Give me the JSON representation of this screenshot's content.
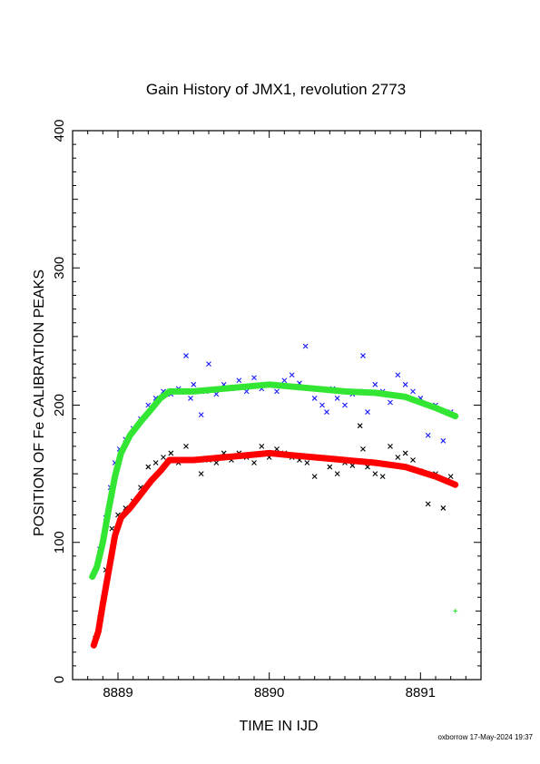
{
  "chart_data": {
    "type": "scatter",
    "title": "Gain History of JMX1, revolution 2773",
    "xlabel": "TIME IN IJD",
    "ylabel": "POSITION OF Fe CALIBRATION PEAKS",
    "xlim": [
      8888.7,
      8891.4
    ],
    "ylim": [
      0,
      400
    ],
    "xticks": [
      8889,
      8890,
      8891
    ],
    "xtick_labels": [
      "8889",
      "8890",
      "8891"
    ],
    "yticks": [
      0,
      100,
      200,
      300,
      400
    ],
    "ytick_labels": [
      "0",
      "100",
      "200",
      "300",
      "400"
    ],
    "grid": false,
    "legend": "none",
    "colors": {
      "upper_points": "#1a1aff",
      "upper_fit": "#33e633",
      "lower_points": "#000000",
      "lower_fit": "#ff0000"
    },
    "series": [
      {
        "marker": "x",
        "color": "#1a1aff",
        "x": [
          8888.88,
          8888.92,
          8888.95,
          8888.98,
          8889.01,
          8889.05,
          8889.1,
          8889.15,
          8889.2,
          8889.25,
          8889.3,
          8889.35,
          8889.4,
          8889.45,
          8889.48,
          8889.5,
          8889.55,
          8889.58,
          8889.6,
          8889.65,
          8889.7,
          8889.75,
          8889.8,
          8889.85,
          8889.9,
          8889.95,
          8890.0,
          8890.05,
          8890.1,
          8890.15,
          8890.2,
          8890.24,
          8890.3,
          8890.35,
          8890.38,
          8890.42,
          8890.45,
          8890.5,
          8890.55,
          8890.6,
          8890.62,
          8890.65,
          8890.7,
          8890.75,
          8890.8,
          8890.85,
          8890.9,
          8890.95,
          8891.0,
          8891.05,
          8891.1,
          8891.15,
          8891.2
        ],
        "y": [
          95,
          118,
          140,
          158,
          168,
          175,
          183,
          190,
          200,
          205,
          210,
          208,
          212,
          236,
          205,
          215,
          193,
          210,
          230,
          208,
          215,
          212,
          218,
          210,
          220,
          212,
          215,
          210,
          218,
          222,
          216,
          243,
          205,
          200,
          195,
          212,
          205,
          200,
          208,
          210,
          236,
          195,
          215,
          210,
          202,
          222,
          215,
          210,
          205,
          178,
          200,
          174,
          195
        ]
      },
      {
        "marker": "+",
        "color": "#33e633",
        "x": [
          8891.23
        ],
        "y": [
          50
        ]
      },
      {
        "marker": "x",
        "color": "#000000",
        "x": [
          8888.85,
          8888.88,
          8888.92,
          8888.96,
          8889.0,
          8889.05,
          8889.1,
          8889.15,
          8889.2,
          8889.25,
          8889.3,
          8889.35,
          8889.4,
          8889.45,
          8889.5,
          8889.55,
          8889.6,
          8889.65,
          8889.7,
          8889.75,
          8889.8,
          8889.85,
          8889.9,
          8889.95,
          8890.0,
          8890.05,
          8890.1,
          8890.15,
          8890.2,
          8890.25,
          8890.3,
          8890.35,
          8890.4,
          8890.45,
          8890.5,
          8890.55,
          8890.6,
          8890.62,
          8890.65,
          8890.7,
          8890.75,
          8890.8,
          8890.85,
          8890.9,
          8890.95,
          8891.0,
          8891.05,
          8891.1,
          8891.15,
          8891.2
        ],
        "y": [
          30,
          45,
          80,
          110,
          120,
          125,
          130,
          140,
          155,
          158,
          162,
          165,
          158,
          170,
          160,
          150,
          160,
          158,
          165,
          160,
          165,
          162,
          158,
          170,
          162,
          168,
          165,
          162,
          160,
          158,
          148,
          162,
          155,
          150,
          158,
          156,
          185,
          168,
          155,
          150,
          148,
          170,
          162,
          165,
          160,
          152,
          128,
          150,
          125,
          148
        ]
      }
    ],
    "fit_curves": [
      {
        "color": "#33e633",
        "x": [
          8888.83,
          8888.86,
          8888.9,
          8888.94,
          8888.98,
          8889.02,
          8889.08,
          8889.15,
          8889.22,
          8889.28,
          8889.34,
          8889.5,
          8889.7,
          8889.9,
          8890.0,
          8890.1,
          8890.3,
          8890.5,
          8890.7,
          8890.9,
          8891.1,
          8891.23
        ],
        "y": [
          75,
          82,
          100,
          125,
          148,
          165,
          178,
          188,
          197,
          205,
          210,
          210,
          212,
          214,
          215,
          214,
          212,
          210,
          209,
          206,
          198,
          192
        ]
      },
      {
        "color": "#ff0000",
        "x": [
          8888.84,
          8888.87,
          8888.9,
          8888.94,
          8888.98,
          8889.02,
          8889.08,
          8889.15,
          8889.22,
          8889.28,
          8889.34,
          8889.5,
          8889.7,
          8889.9,
          8890.0,
          8890.1,
          8890.3,
          8890.5,
          8890.7,
          8890.9,
          8891.1,
          8891.23
        ],
        "y": [
          25,
          35,
          55,
          80,
          105,
          118,
          125,
          135,
          145,
          152,
          160,
          160,
          162,
          164,
          165,
          164,
          162,
          160,
          158,
          155,
          148,
          142
        ]
      }
    ]
  },
  "footer": "oxborrow 17-May-2024 19:37"
}
